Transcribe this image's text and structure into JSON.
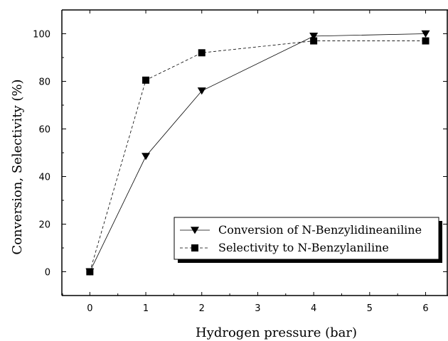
{
  "chart_data": {
    "type": "line",
    "title": "",
    "xlabel": "Hydrogen pressure (bar)",
    "ylabel": "Conversion, Selectivity (%)",
    "xlim": [
      -0.5,
      6.4
    ],
    "ylim": [
      -10,
      110
    ],
    "x_ticks": [
      0,
      1,
      2,
      3,
      4,
      5,
      6
    ],
    "y_ticks": [
      0,
      20,
      40,
      60,
      80,
      100
    ],
    "grid": false,
    "legend_position": "lower-right",
    "series": [
      {
        "name": "Conversion  of N-Benzylidineaniline",
        "marker": "triangle-down",
        "line_style": "solid",
        "color": "#000000",
        "x": [
          0,
          1,
          2,
          4,
          6
        ],
        "y": [
          0,
          48.5,
          76,
          99,
          100
        ]
      },
      {
        "name": "Selectivity to N-Benzylaniline",
        "marker": "square",
        "line_style": "dashed",
        "color": "#000000",
        "x": [
          0,
          1,
          2,
          4,
          6
        ],
        "y": [
          0,
          80.5,
          92,
          97,
          97
        ]
      }
    ]
  }
}
